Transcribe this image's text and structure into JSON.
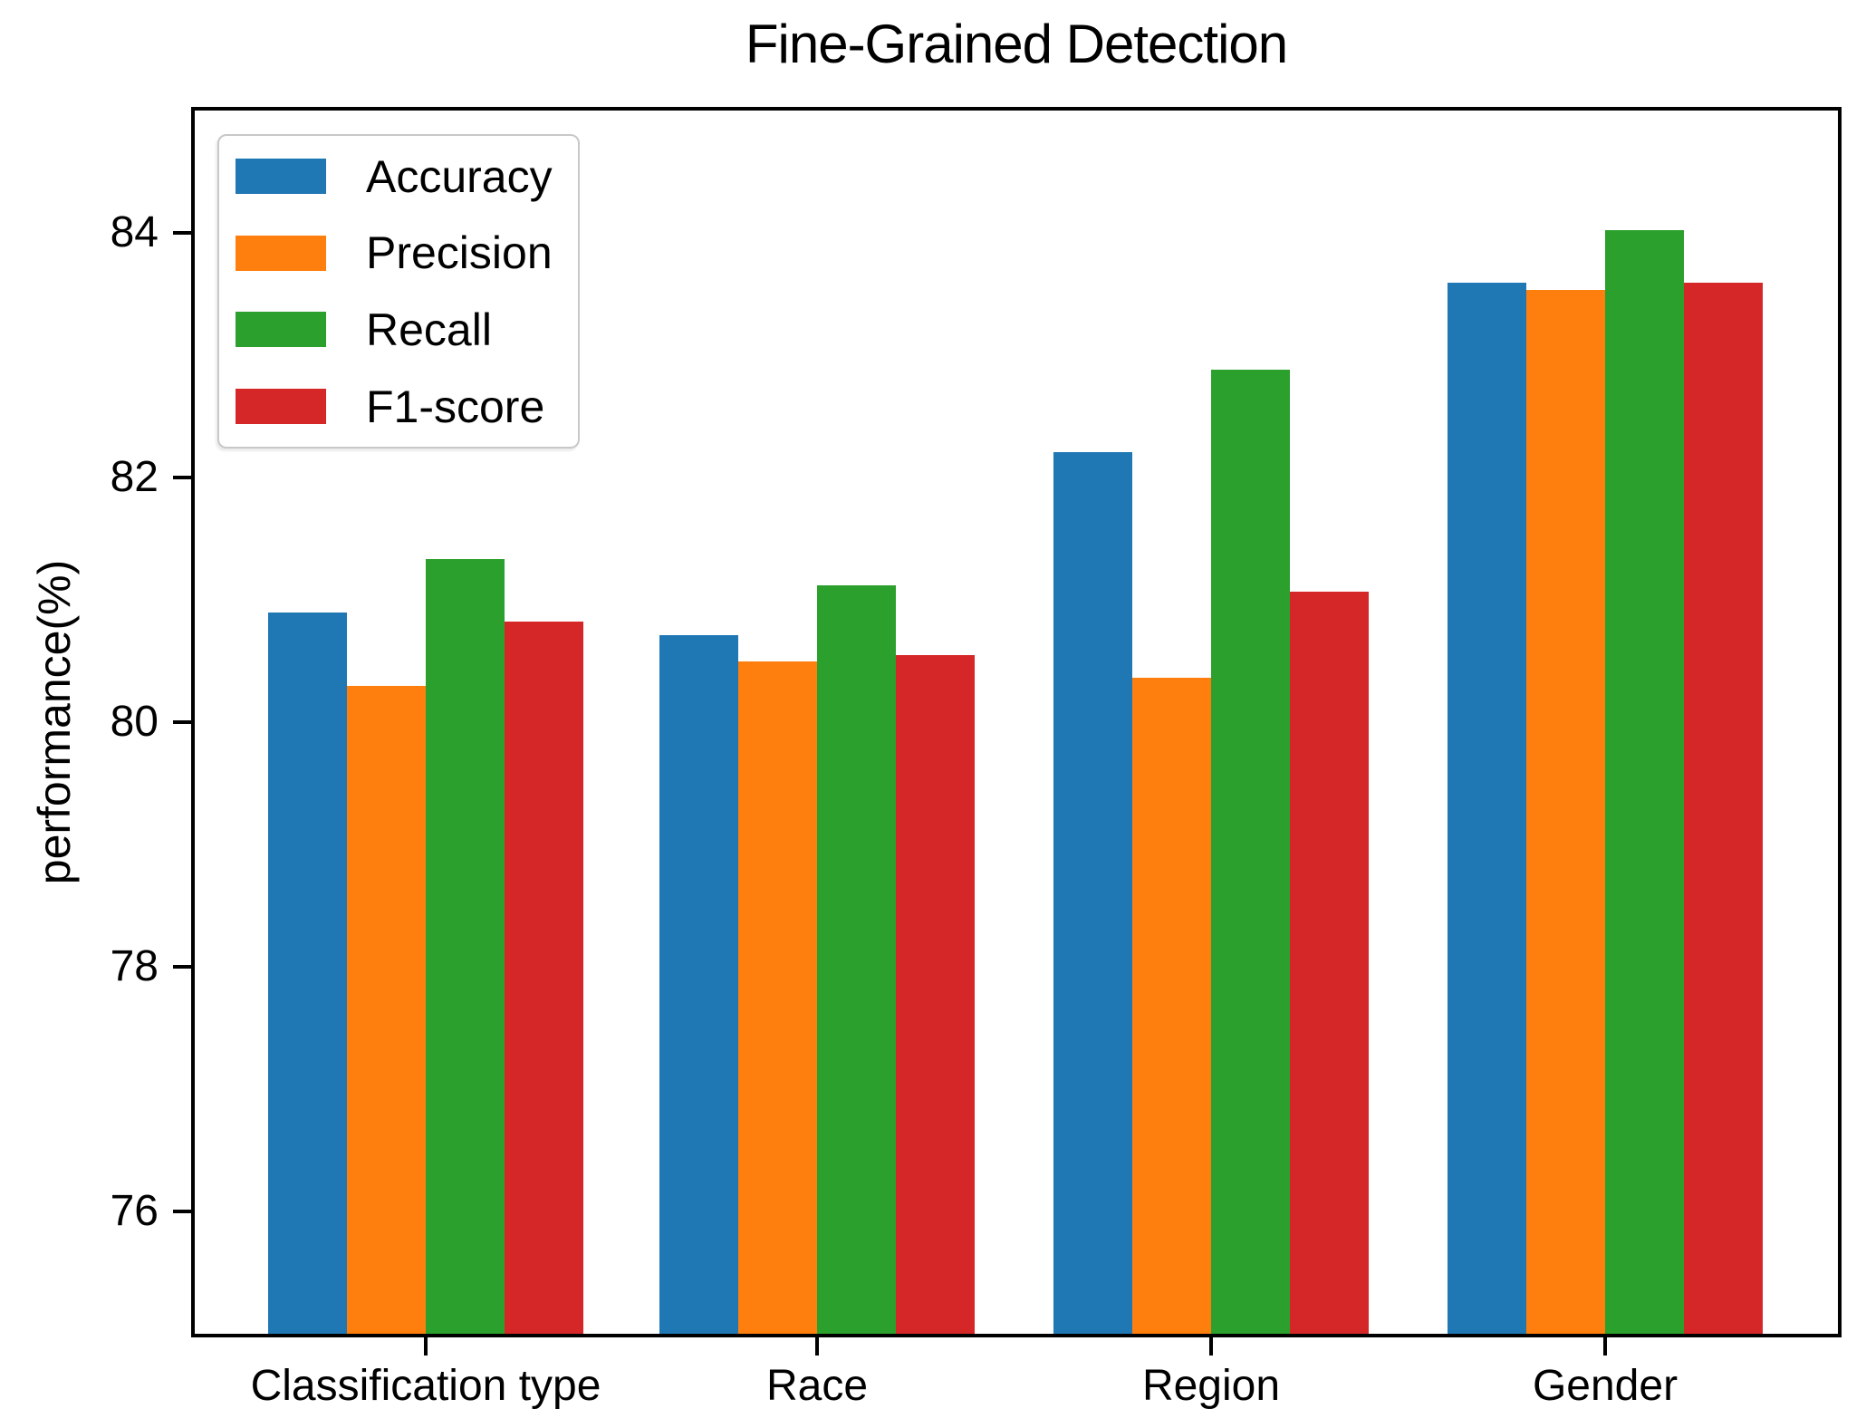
{
  "title": "Fine-Grained Detection",
  "ylabel": "performance(%)",
  "chart_data": {
    "type": "bar",
    "title": "Fine-Grained Detection",
    "xlabel": "",
    "ylabel": "performance(%)",
    "categories": [
      "Classification type",
      "Race",
      "Region",
      "Gender"
    ],
    "series": [
      {
        "name": "Accuracy",
        "color": "#1f77b4",
        "values": [
          80.9,
          80.71,
          82.21,
          83.59
        ]
      },
      {
        "name": "Precision",
        "color": "#ff7f0e",
        "values": [
          80.3,
          80.5,
          80.36,
          83.53
        ]
      },
      {
        "name": "Recall",
        "color": "#2ca02c",
        "values": [
          81.33,
          81.12,
          82.88,
          84.02
        ]
      },
      {
        "name": "F1-score",
        "color": "#d62728",
        "values": [
          80.82,
          80.55,
          81.07,
          83.59
        ]
      }
    ],
    "ylim": [
      75,
      85
    ],
    "yticks": [
      76,
      78,
      80,
      82,
      84
    ],
    "legend_position": "upper left",
    "legend_entries": [
      "Accuracy",
      "Precision",
      "Recall",
      "F1-score"
    ],
    "grid": false,
    "text_color": "#000000",
    "background_color": "#ffffff"
  }
}
